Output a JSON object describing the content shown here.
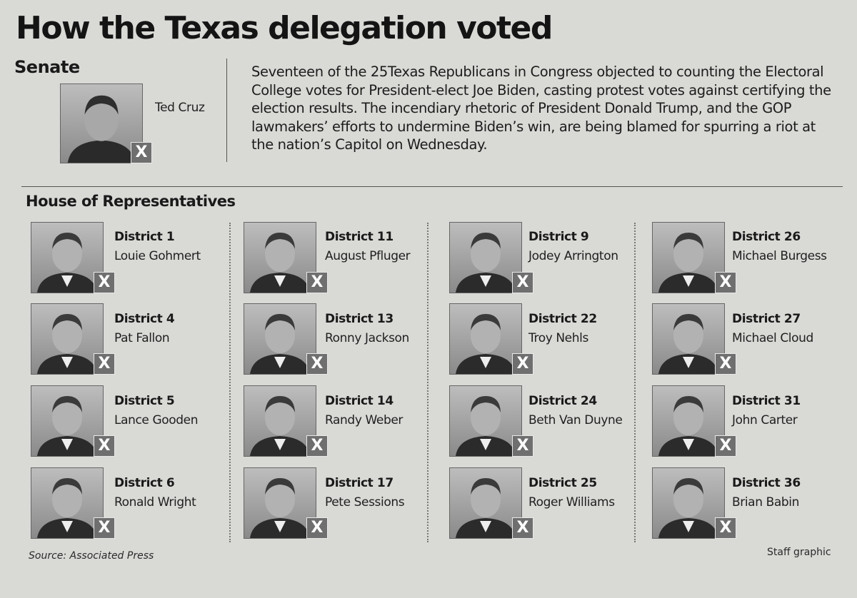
{
  "title": "How the Texas delegation voted",
  "senate": {
    "heading": "Senate",
    "member": {
      "name": "Ted Cruz",
      "vote_mark": "X"
    }
  },
  "summary": "Seventeen of the 25Texas Republicans in Congress objected to counting the Electoral College votes for President-elect Joe Biden, casting protest votes against certifying the election results. The incendiary rhetoric of President Donald Trump, and the GOP lawmakers’ efforts to undermine Biden’s win, are being blamed for spurring a riot at the nation’s Capitol on Wednesday.",
  "house": {
    "heading": "House of Representatives",
    "vote_mark": "X",
    "members": [
      {
        "district": "District 1",
        "name": "Louie Gohmert"
      },
      {
        "district": "District 4",
        "name": "Pat Fallon"
      },
      {
        "district": "District 5",
        "name": "Lance Gooden"
      },
      {
        "district": "District 6",
        "name": "Ronald Wright"
      },
      {
        "district": "District 11",
        "name": "August Pfluger"
      },
      {
        "district": "District 13",
        "name": "Ronny Jackson"
      },
      {
        "district": "District 14",
        "name": "Randy Weber"
      },
      {
        "district": "District 17",
        "name": "Pete Sessions"
      },
      {
        "district": "District 9",
        "name": "Jodey Arrington"
      },
      {
        "district": "District 22",
        "name": "Troy Nehls"
      },
      {
        "district": "District 24",
        "name": "Beth Van Duyne"
      },
      {
        "district": "District 25",
        "name": "Roger Williams"
      },
      {
        "district": "District 26",
        "name": "Michael Burgess"
      },
      {
        "district": "District 27",
        "name": "Michael Cloud"
      },
      {
        "district": "District 31",
        "name": "John Carter"
      },
      {
        "district": "District 36",
        "name": "Brian Babin"
      }
    ]
  },
  "footer": {
    "source": "Source: Associated Press",
    "credit": "Staff graphic"
  }
}
